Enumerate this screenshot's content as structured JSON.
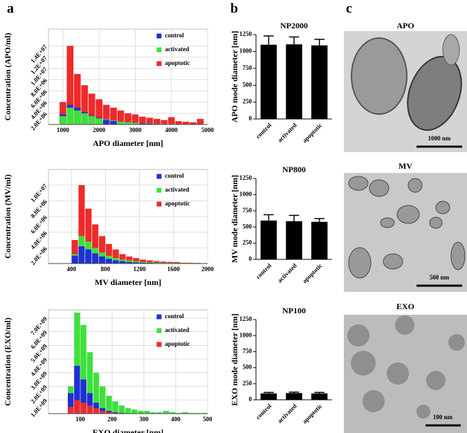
{
  "panel_labels": [
    "a",
    "b",
    "c"
  ],
  "chart_data": [
    {
      "type": "histogram",
      "x_label": "APO diameter [nm]",
      "y_label": "Concentration (APO/ml)",
      "bins": [
        900,
        1100,
        1300,
        1500,
        1700,
        1900,
        2100,
        2300,
        2500,
        2700,
        2900,
        3100,
        3300,
        3500,
        3700,
        3900,
        4100,
        4300,
        4500,
        4700,
        4900
      ],
      "series": [
        {
          "name": "control",
          "color": "#1f2fd6",
          "values": [
            1800000.0,
            3500000.0,
            3000000.0,
            2200000.0,
            1600000.0,
            1200000.0,
            800000.0,
            600000.0,
            500000.0,
            400000.0,
            300000.0,
            200000.0,
            150000.0,
            100000.0,
            100000.0,
            50000.0,
            50000.0,
            50000.0,
            30000.0,
            30000.0
          ]
        },
        {
          "name": "activated",
          "color": "#3de03d",
          "values": [
            1500000.0,
            3000000.0,
            2500000.0,
            2000000.0,
            1500000.0,
            1100000.0,
            900000.0,
            700000.0,
            500000.0,
            400000.0,
            300000.0,
            250000.0,
            200000.0,
            150000.0,
            100000.0,
            100000.0,
            50000.0,
            50000.0,
            50000.0,
            50000.0
          ]
        },
        {
          "name": "apoptotic",
          "color": "#ee2a2a",
          "values": [
            4000000.0,
            14000000.0,
            9000000.0,
            7000000.0,
            5500000.0,
            4500000.0,
            3500000.0,
            3000000.0,
            2500000.0,
            2000000.0,
            1800000.0,
            1400000.0,
            1200000.0,
            1000000.0,
            800000.0,
            1300000.0,
            600000.0,
            500000.0,
            400000.0,
            1000000.0
          ]
        }
      ],
      "xlim": [
        600,
        5000
      ],
      "xticks": [
        1000,
        2000,
        3000,
        4000,
        5000
      ],
      "ylim": [
        0,
        17000000.0
      ],
      "yticks": [
        {
          "value": 2000000.0,
          "label": "2.0E+06"
        },
        {
          "value": 4000000.0,
          "label": "4.0E+06"
        },
        {
          "value": 6000000.0,
          "label": "6.0E+06"
        },
        {
          "value": 8000000.0,
          "label": "8.0E+06"
        },
        {
          "value": 10000000.0,
          "label": "1.0E+07"
        },
        {
          "value": 12000000.0,
          "label": "1.2E+07"
        },
        {
          "value": 14000000.0,
          "label": "1.4E+07"
        }
      ],
      "grid": true,
      "legend": "upper right"
    },
    {
      "type": "histogram",
      "x_label": "MV diameter [nm]",
      "y_label": "Concentration (MV/ml)",
      "bins": [
        400,
        480,
        560,
        640,
        720,
        800,
        880,
        960,
        1040,
        1120,
        1200,
        1280,
        1360,
        1440,
        1520,
        1600,
        1680,
        1760,
        1840,
        1920,
        2000
      ],
      "series": [
        {
          "name": "control",
          "color": "#1f2fd6",
          "values": [
            1000000.0,
            2200000.0,
            1800000.0,
            1300000.0,
            900000.0,
            600000.0,
            400000.0,
            300000.0,
            200000.0,
            150000.0,
            100000.0,
            80000.0,
            50000.0,
            50000.0,
            30000.0,
            30000.0,
            20000.0,
            20000.0,
            10000.0,
            10000.0
          ]
        },
        {
          "name": "activated",
          "color": "#3de03d",
          "values": [
            1200000.0,
            3500000.0,
            2800000.0,
            2000000.0,
            1400000.0,
            1000000.0,
            700000.0,
            500000.0,
            400000.0,
            300000.0,
            200000.0,
            150000.0,
            100000.0,
            100000.0,
            80000.0,
            200000.0,
            50000.0,
            50000.0,
            50000.0,
            30000.0
          ]
        },
        {
          "name": "apoptotic",
          "color": "#ee2a2a",
          "values": [
            3000000.0,
            10000000.0,
            7000000.0,
            5000000.0,
            3500000.0,
            2500000.0,
            1800000.0,
            1200000.0,
            900000.0,
            700000.0,
            500000.0,
            400000.0,
            300000.0,
            250000.0,
            200000.0,
            150000.0,
            100000.0,
            100000.0,
            80000.0,
            50000.0
          ]
        }
      ],
      "xlim": [
        130,
        2000
      ],
      "xticks": [
        400,
        800,
        1200,
        1600,
        2000
      ],
      "ylim": [
        0,
        12000000.0
      ],
      "yticks": [
        {
          "value": 2000000.0,
          "label": "2.0E+06"
        },
        {
          "value": 4000000.0,
          "label": "4.0E+06"
        },
        {
          "value": 6000000.0,
          "label": "6.0E+06"
        },
        {
          "value": 8000000.0,
          "label": "8.0E+06"
        },
        {
          "value": 10000000.0,
          "label": "1.0E+07"
        }
      ],
      "grid": true,
      "legend": "upper right"
    },
    {
      "type": "histogram",
      "x_label": "EXO diameter [nm]",
      "y_label": "Concentration (EXO/ml)",
      "bins": [
        60,
        80,
        100,
        120,
        140,
        160,
        180,
        200,
        220,
        240,
        260,
        280,
        300,
        320,
        340,
        360,
        380,
        400,
        420,
        440,
        460,
        480,
        500
      ],
      "series": [
        {
          "name": "control",
          "color": "#1f2fd6",
          "values": [
            1500000000.0,
            3500000000.0,
            2500000000.0,
            1500000000.0,
            800000000.0,
            400000000.0,
            200000000.0,
            100000000.0,
            50000000.0,
            30000000.0,
            20000000.0,
            10000000.0,
            0,
            0,
            0,
            0,
            0,
            0,
            0,
            0,
            0,
            0
          ]
        },
        {
          "name": "activated",
          "color": "#3de03d",
          "values": [
            2000000000.0,
            7400000000.0,
            6500000000.0,
            4500000000.0,
            3000000000.0,
            2000000000.0,
            1300000000.0,
            900000000.0,
            600000000.0,
            400000000.0,
            300000000.0,
            200000000.0,
            200000000.0,
            100000000.0,
            100000000.0,
            200000000.0,
            100000000.0,
            50000000.0,
            100000000.0,
            50000000.0,
            50000000.0,
            50000000.0
          ]
        },
        {
          "name": "apoptotic",
          "color": "#ee2a2a",
          "values": [
            500000000.0,
            1000000000.0,
            800000000.0,
            600000000.0,
            400000000.0,
            200000000.0,
            100000000.0,
            50000000.0,
            30000000.0,
            20000000.0,
            10000000.0,
            0,
            0,
            0,
            0,
            0,
            0,
            0,
            0,
            0,
            0,
            0
          ]
        }
      ],
      "xlim": [
        0,
        500
      ],
      "xticks": [
        100,
        200,
        300,
        400,
        500
      ],
      "ylim": [
        0,
        7600000000.0
      ],
      "yticks": [
        {
          "value": 1000000000.0,
          "label": "1.0E+09"
        },
        {
          "value": 2000000000.0,
          "label": "2.0E+09"
        },
        {
          "value": 3000000000.0,
          "label": "3.0E+09"
        },
        {
          "value": 4000000000.0,
          "label": "4.0E+09"
        },
        {
          "value": 5000000000.0,
          "label": "5.0E+09"
        },
        {
          "value": 6000000000.0,
          "label": "6.0E+09"
        },
        {
          "value": 7000000000.0,
          "label": "7.0E+09"
        }
      ],
      "grid": true,
      "legend": "upper right"
    },
    {
      "type": "bar",
      "title": "NP2000",
      "y_label": "APO mode diameter [nm]",
      "categories": [
        "control",
        "activated",
        "apoptotic"
      ],
      "values": [
        1100,
        1105,
        1090
      ],
      "errors": [
        130,
        110,
        90
      ],
      "color": "#000000",
      "ylim": [
        0,
        1250
      ],
      "yticks": [
        0,
        250,
        500,
        750,
        1000,
        1250
      ]
    },
    {
      "type": "bar",
      "title": "NP800",
      "y_label": "MV mode diameter [nm]",
      "categories": [
        "control",
        "activated",
        "apoptotic"
      ],
      "values": [
        600,
        590,
        580
      ],
      "errors": [
        90,
        90,
        50
      ],
      "color": "#000000",
      "ylim": [
        0,
        1250
      ],
      "yticks": [
        0,
        250,
        500,
        750,
        1000,
        1250
      ]
    },
    {
      "type": "bar",
      "title": "NP100",
      "y_label": "EXO mode diameter [nm]",
      "categories": [
        "control",
        "activated",
        "apoptotic"
      ],
      "values": [
        100,
        105,
        100
      ],
      "errors": [
        15,
        15,
        15
      ],
      "color": "#000000",
      "ylim": [
        0,
        1250
      ],
      "yticks": [
        0,
        250,
        500,
        750,
        1000,
        1250
      ]
    }
  ],
  "micrographs": [
    {
      "title": "APO",
      "scale_bar": "1000 nm"
    },
    {
      "title": "MV",
      "scale_bar": "500 nm"
    },
    {
      "title": "EXO",
      "scale_bar": "100 nm"
    }
  ]
}
